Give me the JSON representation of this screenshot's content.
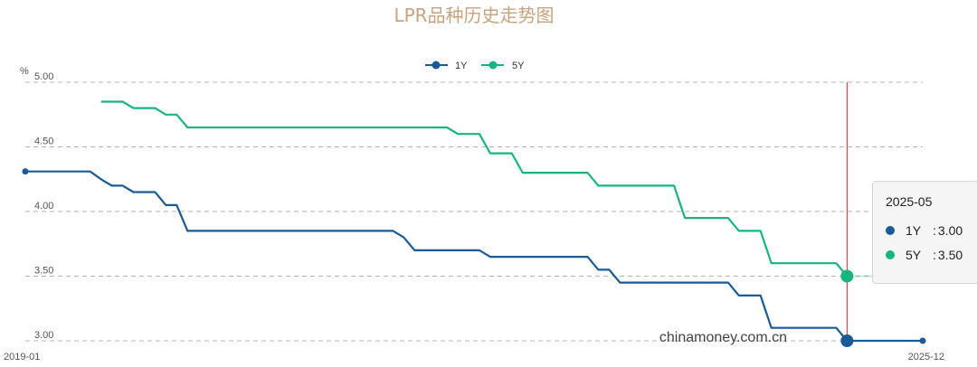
{
  "chart_data": {
    "type": "line",
    "title": "LPR品种历史走势图",
    "ylabel": "%",
    "ylim": [
      3.0,
      5.0
    ],
    "yticks": [
      "5.00",
      "4.50",
      "4.00",
      "3.50",
      "3.00"
    ],
    "xlim": [
      "2019-01",
      "2025-12"
    ],
    "xticks": [
      "2019-01",
      "2025-12"
    ],
    "legend": "top-center",
    "grid": "horizontal-dashed",
    "series": [
      {
        "name": "1Y",
        "color": "#1a5a96",
        "points": [
          [
            "2019-01",
            4.31
          ],
          [
            "2019-07",
            4.31
          ],
          [
            "2019-08",
            4.25
          ],
          [
            "2019-09",
            4.2
          ],
          [
            "2019-10",
            4.2
          ],
          [
            "2019-11",
            4.15
          ],
          [
            "2020-01",
            4.15
          ],
          [
            "2020-02",
            4.05
          ],
          [
            "2020-03",
            4.05
          ],
          [
            "2020-04",
            3.85
          ],
          [
            "2021-11",
            3.85
          ],
          [
            "2021-12",
            3.8
          ],
          [
            "2022-01",
            3.7
          ],
          [
            "2022-07",
            3.7
          ],
          [
            "2022-08",
            3.65
          ],
          [
            "2023-05",
            3.65
          ],
          [
            "2023-06",
            3.55
          ],
          [
            "2023-07",
            3.55
          ],
          [
            "2023-08",
            3.45
          ],
          [
            "2024-06",
            3.45
          ],
          [
            "2024-07",
            3.35
          ],
          [
            "2024-09",
            3.35
          ],
          [
            "2024-10",
            3.1
          ],
          [
            "2025-04",
            3.1
          ],
          [
            "2025-05",
            3.0
          ],
          [
            "2025-12",
            3.0
          ]
        ]
      },
      {
        "name": "5Y",
        "color": "#16b57f",
        "points": [
          [
            "2019-08",
            4.85
          ],
          [
            "2019-10",
            4.85
          ],
          [
            "2019-11",
            4.8
          ],
          [
            "2020-01",
            4.8
          ],
          [
            "2020-02",
            4.75
          ],
          [
            "2020-03",
            4.75
          ],
          [
            "2020-04",
            4.65
          ],
          [
            "2022-04",
            4.65
          ],
          [
            "2022-05",
            4.6
          ],
          [
            "2022-07",
            4.6
          ],
          [
            "2022-08",
            4.45
          ],
          [
            "2022-10",
            4.45
          ],
          [
            "2022-11",
            4.3
          ],
          [
            "2023-05",
            4.3
          ],
          [
            "2023-06",
            4.2
          ],
          [
            "2024-01",
            4.2
          ],
          [
            "2024-02",
            3.95
          ],
          [
            "2024-06",
            3.95
          ],
          [
            "2024-07",
            3.85
          ],
          [
            "2024-09",
            3.85
          ],
          [
            "2024-10",
            3.6
          ],
          [
            "2025-04",
            3.6
          ],
          [
            "2025-05",
            3.5
          ],
          [
            "2025-12",
            3.5
          ]
        ]
      }
    ],
    "highlight": "2025-05"
  },
  "tooltip": {
    "date": "2025-05",
    "rows": [
      {
        "name": "1Y",
        "sep": ":",
        "value": "3.00",
        "color": "#1a5a96"
      },
      {
        "name": "5Y",
        "sep": ":",
        "value": "3.50",
        "color": "#16b57f"
      }
    ]
  },
  "watermark": "chinamoney.com.cn"
}
